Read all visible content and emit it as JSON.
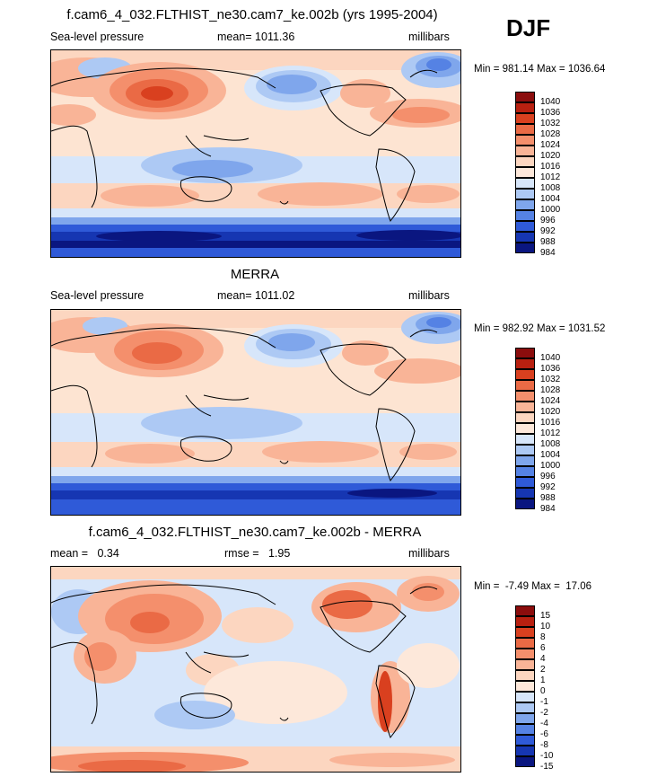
{
  "season": "DJF",
  "colors": {
    "pos6": "#8b0d0d",
    "pos5": "#b82010",
    "pos4": "#d9401f",
    "pos3": "#ea6a45",
    "pos2": "#f48f6c",
    "pos1": "#f9b497",
    "pos0": "#fcd6c0",
    "neutral": "#fde8da",
    "neg0": "#d7e6fa",
    "neg1": "#adc9f4",
    "neg2": "#7fa6ec",
    "neg3": "#5582e4",
    "neg4": "#2f5ad8",
    "neg5": "#1636b2",
    "neg6": "#0a1680"
  },
  "panels": [
    {
      "title": "f.cam6_4_032.FLTHIST_ne30.cam7_ke.002b (yrs 1995-2004)",
      "left_label": "Sea-level pressure",
      "center_label": "mean= 1011.36",
      "right_label": "millibars",
      "minmax": "Min = 981.14 Max = 1036.64",
      "colorbar_levels": [
        "1040",
        "1036",
        "1032",
        "1028",
        "1024",
        "1020",
        "1016",
        "1012",
        "1008",
        "1004",
        "1000",
        "996",
        "992",
        "988",
        "984"
      ]
    },
    {
      "title": "MERRA",
      "left_label": "Sea-level pressure",
      "center_label": "mean= 1011.02",
      "right_label": "millibars",
      "minmax": "Min = 982.92 Max = 1031.52",
      "colorbar_levels": [
        "1040",
        "1036",
        "1032",
        "1028",
        "1024",
        "1020",
        "1016",
        "1012",
        "1008",
        "1004",
        "1000",
        "996",
        "992",
        "988",
        "984"
      ]
    },
    {
      "title": "f.cam6_4_032.FLTHIST_ne30.cam7_ke.002b - MERRA",
      "left_label": "mean =   0.34",
      "center_label": "rmse =   1.95",
      "right_label": "millibars",
      "minmax": "Min =  -7.49 Max =  17.06",
      "colorbar_levels": [
        "15",
        "10",
        "8",
        "6",
        "4",
        "2",
        "1",
        "0",
        "-1",
        "-2",
        "-4",
        "-6",
        "-8",
        "-10",
        "-15"
      ]
    }
  ]
}
